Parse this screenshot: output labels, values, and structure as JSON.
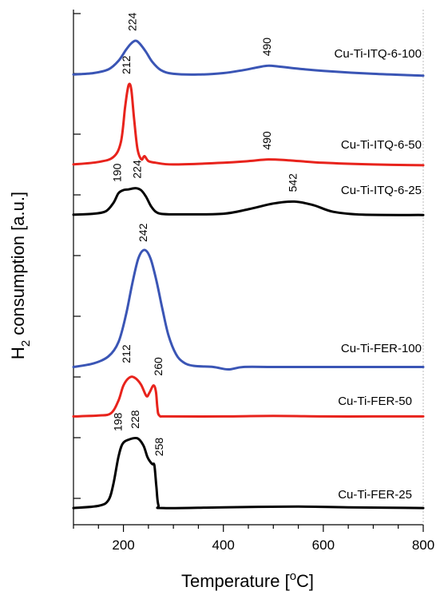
{
  "chart_data": {
    "type": "line",
    "xlabel_main": "Temperature [",
    "xlabel_sup": "o",
    "xlabel_tail": "C]",
    "ylabel_main": "H",
    "ylabel_sub": "2",
    "ylabel_tail": " consumption [a.u.]",
    "xlim": [
      100,
      800
    ],
    "xticks": [
      "200",
      "400",
      "600",
      "800"
    ],
    "colors": {
      "black": "#000000",
      "red": "#e8231c",
      "blue": "#3a55b5"
    },
    "series": [
      {
        "name": "Cu-Ti-ITQ-6-100",
        "color": "blue",
        "x": [
          100,
          140,
          170,
          190,
          205,
          215,
          224,
          232,
          245,
          258,
          275,
          300,
          350,
          400,
          440,
          470,
          490,
          510,
          550,
          600,
          700,
          800
        ],
        "y": [
          0.08,
          0.12,
          0.22,
          0.45,
          0.75,
          0.92,
          1.0,
          0.93,
          0.7,
          0.42,
          0.2,
          0.1,
          0.08,
          0.12,
          0.2,
          0.28,
          0.32,
          0.3,
          0.24,
          0.18,
          0.1,
          0.05
        ],
        "peaks": [
          "224",
          "490"
        ]
      },
      {
        "name": "Cu-Ti-ITQ-6-50",
        "color": "red",
        "x": [
          100,
          150,
          180,
          195,
          203,
          208,
          212,
          216,
          221,
          228,
          236,
          242,
          250,
          265,
          300,
          400,
          450,
          490,
          530,
          600,
          700,
          800
        ],
        "y": [
          0.03,
          0.06,
          0.12,
          0.3,
          0.7,
          0.92,
          1.0,
          0.92,
          0.6,
          0.22,
          0.09,
          0.13,
          0.07,
          0.05,
          0.03,
          0.05,
          0.07,
          0.09,
          0.08,
          0.05,
          0.03,
          0.02
        ],
        "peaks": [
          "212",
          "490"
        ]
      },
      {
        "name": "Cu-Ti-ITQ-6-25",
        "color": "black",
        "x": [
          100,
          140,
          165,
          180,
          190,
          200,
          210,
          224,
          235,
          245,
          255,
          265,
          280,
          320,
          400,
          450,
          500,
          542,
          580,
          620,
          680,
          800
        ],
        "y": [
          0.03,
          0.06,
          0.14,
          0.4,
          0.7,
          0.8,
          0.82,
          0.86,
          0.8,
          0.6,
          0.3,
          0.12,
          0.05,
          0.04,
          0.06,
          0.2,
          0.38,
          0.44,
          0.33,
          0.12,
          0.03,
          0.02
        ],
        "peaks": [
          "190",
          "224",
          "542"
        ]
      },
      {
        "name": "Cu-Ti-FER-100",
        "color": "blue",
        "x": [
          100,
          140,
          170,
          190,
          205,
          218,
          230,
          242,
          254,
          266,
          278,
          290,
          305,
          320,
          340,
          380,
          410,
          440,
          500,
          600,
          700,
          800
        ],
        "y": [
          0.01,
          0.04,
          0.1,
          0.22,
          0.45,
          0.72,
          0.93,
          1.0,
          0.93,
          0.74,
          0.5,
          0.28,
          0.12,
          0.05,
          0.02,
          0.01,
          -0.01,
          0.01,
          0.01,
          0.01,
          0.01,
          0.01
        ],
        "peaks": [
          "242"
        ]
      },
      {
        "name": "Cu-Ti-FER-50",
        "color": "red",
        "x": [
          100,
          150,
          175,
          190,
          200,
          212,
          222,
          235,
          246,
          252,
          260,
          265,
          268,
          272,
          290,
          400,
          500,
          600,
          700,
          800
        ],
        "y": [
          0.01,
          0.03,
          0.08,
          0.35,
          0.68,
          0.85,
          0.85,
          0.7,
          0.45,
          0.52,
          0.68,
          0.55,
          0.2,
          0.03,
          0.01,
          0.01,
          0.02,
          0.01,
          0.01,
          0.01
        ],
        "peaks": [
          "212",
          "260"
        ]
      },
      {
        "name": "Cu-Ti-FER-25",
        "color": "black",
        "x": [
          100,
          150,
          170,
          180,
          190,
          198,
          210,
          228,
          240,
          248,
          254,
          258,
          262,
          266,
          270,
          280,
          400,
          550,
          650,
          800
        ],
        "y": [
          0.01,
          0.04,
          0.12,
          0.35,
          0.72,
          0.9,
          0.96,
          0.98,
          0.88,
          0.72,
          0.65,
          0.62,
          0.6,
          0.3,
          0.05,
          0.01,
          0.02,
          0.03,
          0.02,
          0.01
        ],
        "peaks": [
          "198",
          "228",
          "258"
        ]
      }
    ]
  }
}
